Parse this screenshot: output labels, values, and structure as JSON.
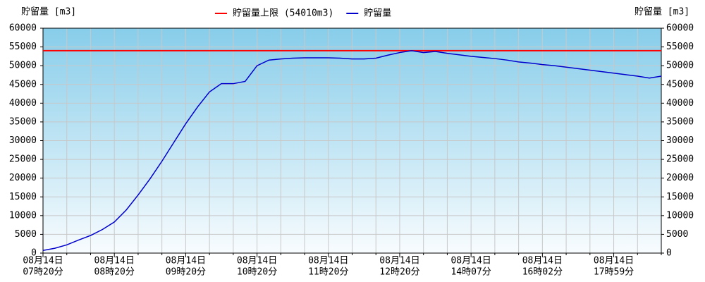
{
  "chart_data": {
    "type": "line",
    "y_label": "貯留量 [m3]",
    "y2_label": "貯留量 [m3]",
    "categories": [
      [
        "08月14日",
        "07時20分"
      ],
      null,
      null,
      null,
      null,
      null,
      [
        "08月14日",
        "08時20分"
      ],
      null,
      null,
      null,
      null,
      null,
      [
        "08月14日",
        "09時20分"
      ],
      null,
      null,
      null,
      null,
      null,
      [
        "08月14日",
        "10時20分"
      ],
      null,
      null,
      null,
      null,
      null,
      [
        "08月14日",
        "11時20分"
      ],
      null,
      null,
      null,
      null,
      null,
      [
        "08月14日",
        "12時20分"
      ],
      null,
      null,
      null,
      null,
      null,
      [
        "08月14日",
        "14時07分"
      ],
      null,
      null,
      null,
      null,
      null,
      [
        "08月14日",
        "16時02分"
      ],
      null,
      null,
      null,
      null,
      null,
      [
        "08月14日",
        "17時59分"
      ],
      null,
      null,
      null,
      null
    ],
    "limit": {
      "name": "貯留量上限 (54010m3)",
      "value": 54010,
      "color": "#ff0000"
    },
    "series": [
      {
        "name": "貯留量",
        "color": "#0000cc",
        "values": [
          700,
          1300,
          2200,
          3500,
          4700,
          6300,
          8300,
          11500,
          15500,
          19800,
          24500,
          29500,
          34500,
          39000,
          43000,
          45200,
          45200,
          45800,
          50000,
          51500,
          51800,
          52000,
          52100,
          52100,
          52100,
          52000,
          51800,
          51800,
          52000,
          52800,
          53500,
          54000,
          53500,
          53800,
          53300,
          52900,
          52500,
          52200,
          51900,
          51500,
          51000,
          50700,
          50300,
          50000,
          49600,
          49200,
          48800,
          48400,
          48000,
          47600,
          47200,
          46700,
          47200
        ]
      }
    ],
    "ylim": [
      0,
      60000
    ],
    "yticks": [
      0,
      5000,
      10000,
      15000,
      20000,
      25000,
      30000,
      35000,
      40000,
      45000,
      50000,
      55000,
      60000
    ],
    "y2lim": [
      0,
      60000
    ],
    "y2ticks": [
      0,
      5000,
      10000,
      15000,
      20000,
      25000,
      30000,
      35000,
      40000,
      45000,
      50000,
      55000,
      60000
    ],
    "grid": true
  }
}
